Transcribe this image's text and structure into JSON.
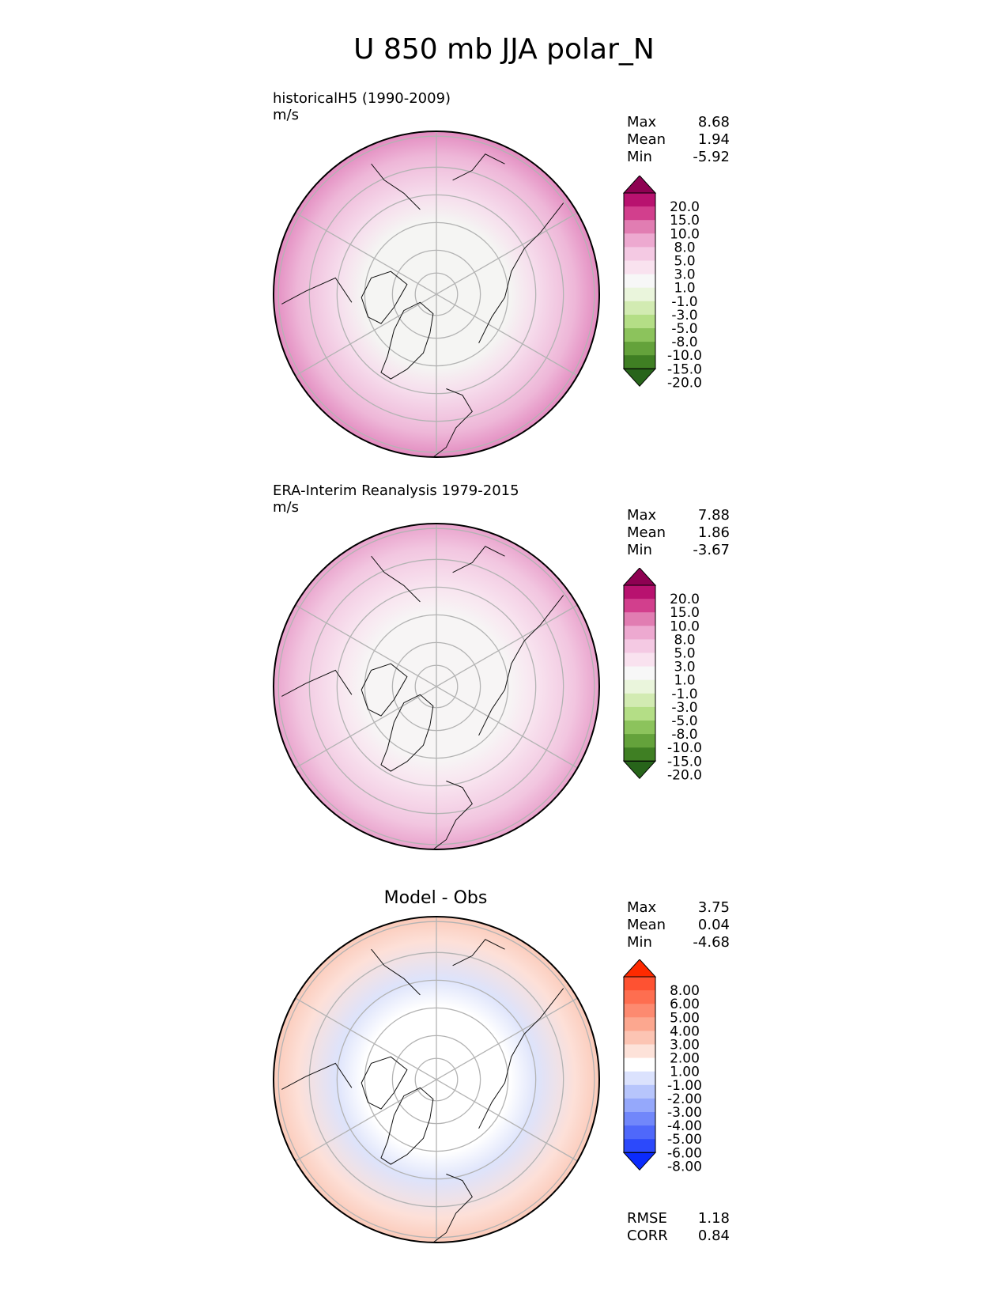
{
  "title": "U 850 mb JJA polar_N",
  "stat_labels": {
    "max": "Max",
    "mean": "Mean",
    "min": "Min",
    "rmse": "RMSE",
    "corr": "CORR"
  },
  "chart_data": [
    {
      "type": "heatmap",
      "projection": "north-polar-stereographic",
      "label_line1": "historicalH5 (1990-2009)",
      "label_line2": "m/s",
      "stats": {
        "max": "8.68",
        "mean": "1.94",
        "min": "-5.92"
      },
      "colorbar": {
        "ticks": [
          "20.0",
          "15.0",
          "10.0",
          "8.0",
          "5.0",
          "3.0",
          "1.0",
          "-1.0",
          "-3.0",
          "-5.0",
          "-8.0",
          "-10.0",
          "-15.0",
          "-20.0"
        ],
        "colors": [
          "#8e0152",
          "#b8126f",
          "#d23f8d",
          "#e17db2",
          "#eda9d0",
          "#f4c9e3",
          "#f9e2ef",
          "#f7f7f7",
          "#eaf5dc",
          "#d2ebb2",
          "#b4de86",
          "#8cc35c",
          "#64a23b",
          "#3f7f23",
          "#27641a"
        ],
        "extend": "both"
      },
      "field": {
        "pole": "#f5f5f3",
        "mid": "#f6dcec",
        "outer": "#eeb7d8",
        "edge": "#e38bc0"
      }
    },
    {
      "type": "heatmap",
      "projection": "north-polar-stereographic",
      "label_line1": "ERA-Interim Reanalysis 1979-2015",
      "label_line2": "m/s",
      "stats": {
        "max": "7.88",
        "mean": "1.86",
        "min": "-3.67"
      },
      "colorbar": {
        "ticks": [
          "20.0",
          "15.0",
          "10.0",
          "8.0",
          "5.0",
          "3.0",
          "1.0",
          "-1.0",
          "-3.0",
          "-5.0",
          "-8.0",
          "-10.0",
          "-15.0",
          "-20.0"
        ],
        "colors": [
          "#8e0152",
          "#b8126f",
          "#d23f8d",
          "#e17db2",
          "#eda9d0",
          "#f4c9e3",
          "#f9e2ef",
          "#f7f7f7",
          "#eaf5dc",
          "#d2ebb2",
          "#b4de86",
          "#8cc35c",
          "#64a23b",
          "#3f7f23",
          "#27641a"
        ],
        "extend": "both"
      },
      "field": {
        "pole": "#f7f5f5",
        "mid": "#f8e3ef",
        "outer": "#f2c6e0",
        "edge": "#e9a2cc"
      }
    },
    {
      "type": "heatmap",
      "projection": "north-polar-stereographic",
      "title": "Model - Obs",
      "stats": {
        "max": "3.75",
        "mean": "0.04",
        "min": "-4.68",
        "rmse": "1.18",
        "corr": "0.84"
      },
      "colorbar": {
        "ticks": [
          "8.00",
          "6.00",
          "5.00",
          "4.00",
          "3.00",
          "2.00",
          "1.00",
          "-1.00",
          "-2.00",
          "-3.00",
          "-4.00",
          "-5.00",
          "-6.00",
          "-8.00"
        ],
        "colors": [
          "#fe2a00",
          "#fe5232",
          "#fe6e50",
          "#fd8a70",
          "#fca78f",
          "#fcc4b3",
          "#fde2d9",
          "#ffffff",
          "#dbe2fd",
          "#b7c5fc",
          "#95a8fb",
          "#7187fa",
          "#4f68fa",
          "#2c49fb",
          "#0b2bfc"
        ],
        "extend": "both"
      },
      "field": {
        "pole": "#ffffff",
        "mid": "#dde3fb",
        "outer": "#fde0d8",
        "edge": "#fbcab9"
      }
    }
  ]
}
